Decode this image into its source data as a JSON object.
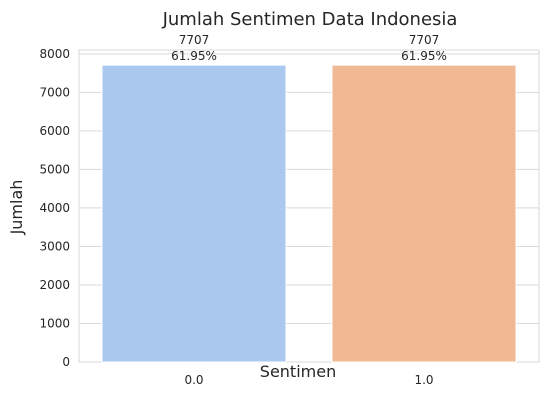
{
  "chart_data": {
    "type": "bar",
    "title": "Jumlah Sentimen Data Indonesia",
    "xlabel": "Sentimen",
    "ylabel": "Jumlah",
    "categories": [
      "0.0",
      "1.0"
    ],
    "values": [
      7707,
      7707
    ],
    "data_labels": [
      {
        "count": "7707",
        "percent": "61.95%"
      },
      {
        "count": "7707",
        "percent": "61.95%"
      }
    ],
    "colors": [
      "#abc9ee",
      "#f1b993"
    ],
    "ylim": [
      0,
      8100
    ],
    "yticks": [
      0,
      1000,
      2000,
      3000,
      4000,
      5000,
      6000,
      7000,
      8000
    ],
    "grid": "horizontal",
    "legend": "none"
  }
}
